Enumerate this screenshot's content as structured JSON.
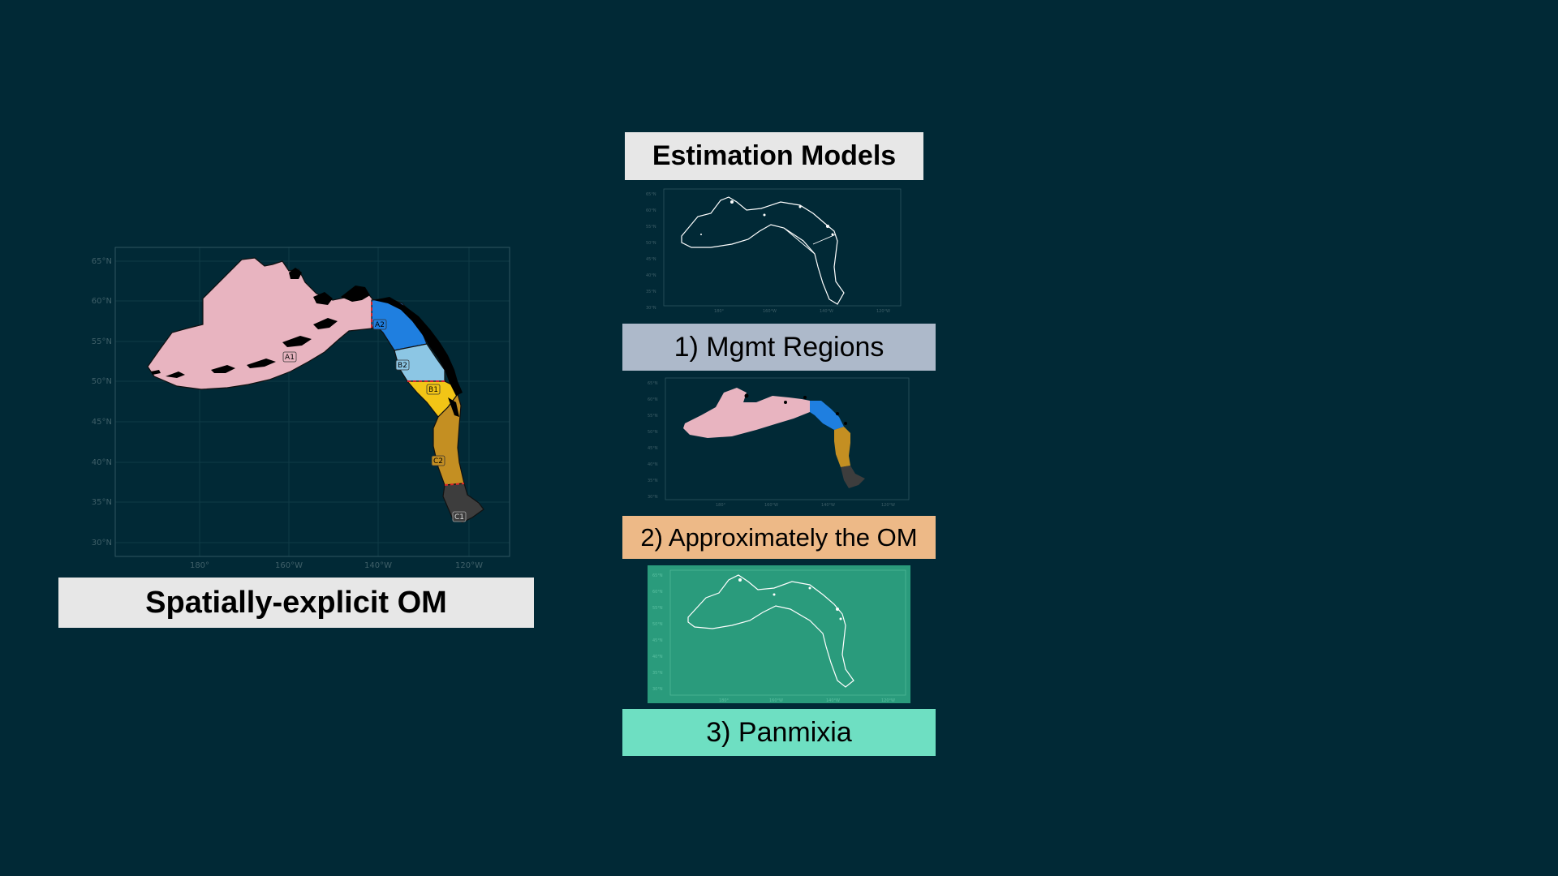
{
  "om": {
    "title": "Spatially-explicit OM",
    "lat_ticks": [
      "65°N",
      "60°N",
      "55°N",
      "50°N",
      "45°N",
      "40°N",
      "35°N",
      "30°N"
    ],
    "lon_ticks": [
      "180°",
      "160°W",
      "140°W",
      "120°W"
    ],
    "regions": [
      {
        "code": "A1",
        "color": "#e8b4c0"
      },
      {
        "code": "A2",
        "color": "#1f7fe0"
      },
      {
        "code": "B2",
        "color": "#8cc6e4"
      },
      {
        "code": "B1",
        "color": "#f2c516"
      },
      {
        "code": "C2",
        "color": "#c48f22"
      },
      {
        "code": "C1",
        "color": "#3d3d3d"
      }
    ],
    "boundary_color": "#d8262a"
  },
  "em": {
    "header": "Estimation Models",
    "models": [
      {
        "label": "1) Mgmt Regions",
        "color": "#adb9ca"
      },
      {
        "label": "2) Approximately the OM",
        "color": "#edb987"
      },
      {
        "label": "3) Panmixia",
        "color": "#6edfc2",
        "panel_color": "#2a9b7c"
      }
    ]
  },
  "colors": {
    "background": "#012936",
    "title_box": "#e7e7e7"
  }
}
